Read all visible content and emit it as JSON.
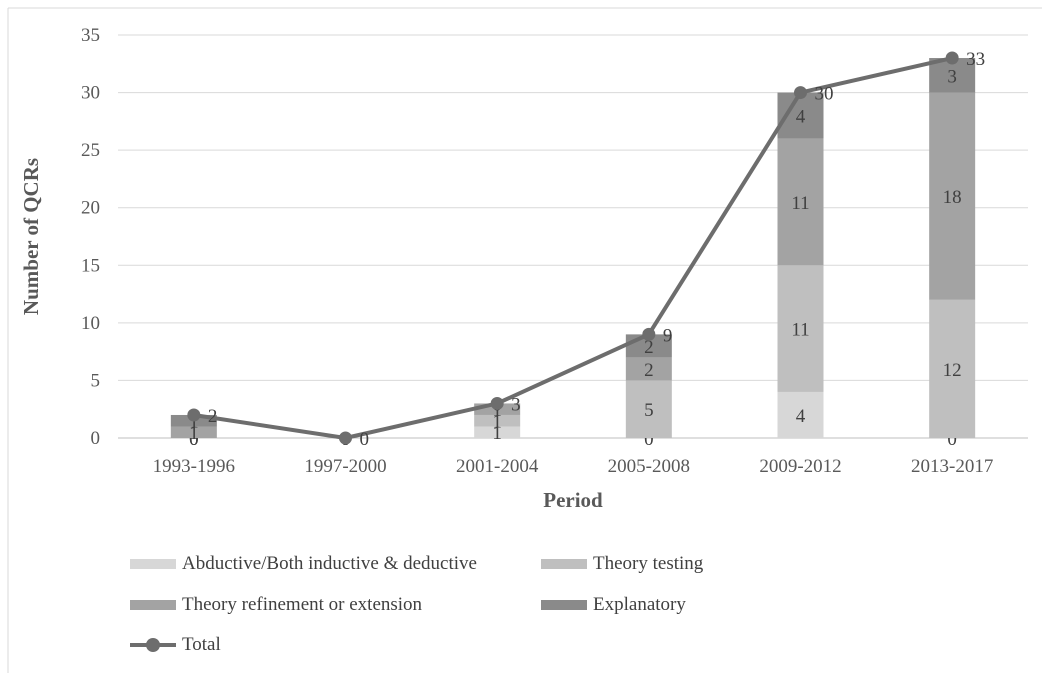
{
  "chart_data": {
    "type": "bar",
    "xlabel": "Period",
    "ylabel": "Number of QCRs",
    "ylim": [
      0,
      35
    ],
    "yticks": [
      0,
      5,
      10,
      15,
      20,
      25,
      30,
      35
    ],
    "grid": true,
    "legend_position": "bottom",
    "categories": [
      "1993-1996",
      "1997-2000",
      "2001-2004",
      "2005-2008",
      "2009-2012",
      "2013-2017"
    ],
    "series": [
      {
        "name": "Abductive/Both inductive & deductive",
        "kind": "stacked-bar",
        "color": "#d7d7d7",
        "values": [
          0,
          0,
          1,
          0,
          4,
          0
        ]
      },
      {
        "name": "Theory testing",
        "kind": "stacked-bar",
        "color": "#bfbfbf",
        "values": [
          0,
          0,
          1,
          5,
          11,
          12
        ]
      },
      {
        "name": "Theory refinement or extension",
        "kind": "stacked-bar",
        "color": "#a3a3a3",
        "values": [
          1,
          0,
          1,
          2,
          11,
          18
        ]
      },
      {
        "name": "Explanatory",
        "kind": "stacked-bar",
        "color": "#8a8a8a",
        "values": [
          1,
          0,
          0,
          2,
          4,
          3
        ]
      },
      {
        "name": "Total",
        "kind": "line",
        "color": "#6d6d6d",
        "values": [
          2,
          0,
          3,
          9,
          30,
          33
        ]
      }
    ]
  }
}
